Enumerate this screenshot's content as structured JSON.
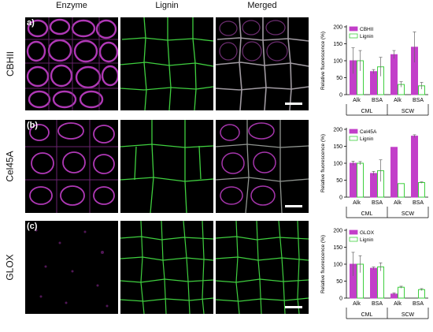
{
  "columns": {
    "enzyme": "Enzyme",
    "lignin": "Lignin",
    "merged": "Merged"
  },
  "rows": [
    {
      "letter": "a)",
      "label": "CBHII"
    },
    {
      "letter": "(b)",
      "label": "Cel45A"
    },
    {
      "letter": "(c)",
      "label": "GLOX"
    }
  ],
  "colors": {
    "enzyme": "#c23fc9",
    "lignin": "#3fcf3f"
  },
  "chart_data": [
    {
      "type": "bar",
      "ylabel": "Relative fluorescence (%)",
      "ylim": [
        0,
        200
      ],
      "yticks": [
        0,
        50,
        100,
        150,
        200
      ],
      "categories": [
        "Alk",
        "BSA",
        "Alk",
        "BSA"
      ],
      "groups": [
        {
          "label": "CML",
          "span": [
            0,
            1
          ]
        },
        {
          "label": "SCW",
          "span": [
            2,
            3
          ]
        }
      ],
      "series": [
        {
          "name": "CBHII",
          "values": [
            100,
            68,
            118,
            140
          ],
          "errors": [
            38,
            6,
            12,
            45
          ]
        },
        {
          "name": "Lignin",
          "values": [
            100,
            82,
            30,
            26
          ],
          "errors": [
            30,
            28,
            8,
            10
          ]
        }
      ],
      "legend_position": "top-left"
    },
    {
      "type": "bar",
      "ylabel": "Relative fluorescence (%)",
      "ylim": [
        0,
        200
      ],
      "yticks": [
        0,
        50,
        100,
        150,
        200
      ],
      "categories": [
        "Alk",
        "BSA",
        "Alk",
        "BSA"
      ],
      "groups": [
        {
          "label": "CML",
          "span": [
            0,
            1
          ]
        },
        {
          "label": "SCW",
          "span": [
            2,
            3
          ]
        }
      ],
      "series": [
        {
          "name": "Cel45A",
          "values": [
            100,
            70,
            147,
            180
          ],
          "errors": [
            6,
            6,
            0,
            4
          ]
        },
        {
          "name": "Lignin",
          "values": [
            100,
            78,
            40,
            43
          ],
          "errors": [
            5,
            32,
            0,
            2
          ]
        }
      ],
      "legend_position": "top-left"
    },
    {
      "type": "bar",
      "ylabel": "Relative fluorescence (%)",
      "ylim": [
        0,
        200
      ],
      "yticks": [
        0,
        50,
        100,
        150,
        200
      ],
      "categories": [
        "Alk",
        "BSA",
        "Alk",
        "BSA"
      ],
      "groups": [
        {
          "label": "CML",
          "span": [
            0,
            1
          ]
        },
        {
          "label": "SCW",
          "span": [
            2,
            3
          ]
        }
      ],
      "series": [
        {
          "name": "GLOX",
          "values": [
            100,
            88,
            12,
            0
          ],
          "errors": [
            35,
            4,
            3,
            0
          ]
        },
        {
          "name": "Lignin",
          "values": [
            100,
            92,
            32,
            25
          ],
          "errors": [
            25,
            12,
            3,
            3
          ]
        }
      ],
      "legend_position": "top-left"
    }
  ]
}
